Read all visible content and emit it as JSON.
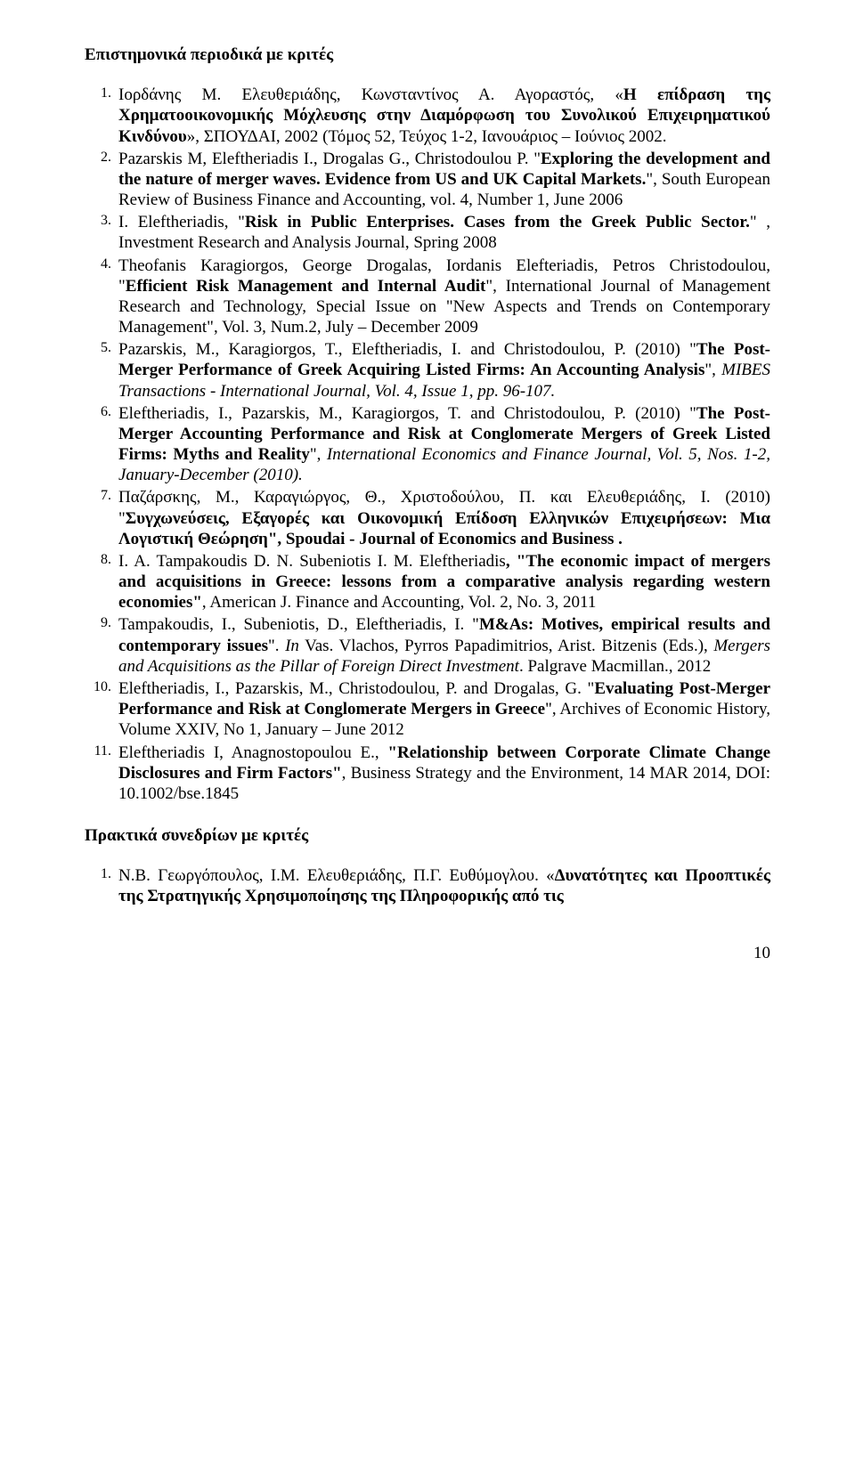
{
  "page_number": "10",
  "section1": {
    "title": "Επιστημονικά περιοδικά με κριτές",
    "items": [
      {
        "num": "1.",
        "plain1": "Ιορδάνης Μ. Ελευθεριάδης, Κωνσταντίνος Α. Αγοραστός, «",
        "bold1": "Η επίδραση της Χρηματοοικονομικής Μόχλευσης στην Διαμόρφωση του Συνολικού Επιχειρηματικού Κινδύνου",
        "plain2": "», ΣΠΟΥΔΑΙ, 2002 (Τόμος 52, Τεύχος 1-2, Ιανουάριος – Ιούνιος 2002."
      },
      {
        "num": "2.",
        "plain1": "Pazarskis M, Eleftheriadis I., Drogalas G., Christodoulou P. \"",
        "bold1": "Exploring the development and the nature of merger waves. Evidence from US and UK Capital Markets.",
        "plain2": "\", South European Review of Business Finance and Accounting, vol. 4, Number 1, June 2006"
      },
      {
        "num": "3.",
        "plain1": "I. Eleftheriadis, \"",
        "bold1": "Risk in Public Enterprises. Cases from the Greek Public Sector.",
        "plain2": "\" , Investment Research and Analysis Journal, Spring 2008"
      },
      {
        "num": "4.",
        "plain1": "Theofanis Karagiorgos, George Drogalas,  Iordanis Elefteriadis, Petros Christodoulou, \"",
        "bold1": "Efficient Risk Management and Internal Audit",
        "plain2": "\", International Journal of Management Research and Technology, Special Issue on \"New Aspects and Trends on Contemporary Management\", Vol. 3, Num.2, July – December 2009"
      },
      {
        "num": "5.",
        "plain1": "Pazarskis, M., Karagiorgos, T., Eleftheriadis, I. and Christodoulou, P. (2010) \"",
        "bold1": "The Post-Merger Performance of Greek Acquiring Listed Firms: An Accounting Analysis",
        "plain2": "\", ",
        "ital1": "MIBES Transactions - International Journal, Vol. 4, Issue 1, pp. 96-107."
      },
      {
        "num": "6.",
        "plain1": " Eleftheriadis, I., Pazarskis, M., Karagiorgos, T. and Christodoulou, P. (2010) \"",
        "bold1": "The Post-Merger Accounting Performance and Risk at Conglomerate Mergers of Greek Listed Firms: Myths and Reality",
        "plain2": "\", ",
        "ital1": "International Economics and Finance Journal, Vol. 5, Nos. 1-2, January-December (2010)."
      },
      {
        "num": "7.",
        "plain1": " Παζάρσκης, Μ., Καραγιώργος, Θ., Χριστοδούλου, Π. και Ελευθεριάδης, Ι. (2010) \"",
        "bold1": "Συγχωνεύσεις, Εξαγορές και Οικονομική Επίδοση Ελληνικών Επιχειρήσεων: Μια Λογιστική Θεώρηση\", Spoudai - Journal of Economics and Business .",
        "plain2": ""
      },
      {
        "num": "8.",
        "plain1": "I. A. Tampakoudis D. N. Subeniotis I. M. Eleftheriadis",
        "bold1": ", \"The economic impact of mergers and acquisitions in Greece: lessons from a comparative analysis regarding western economies\"",
        "plain2": ", American J. Finance and Accounting, Vol. 2, No. 3, 2011"
      },
      {
        "num": "9.",
        "plain1": " Tampakoudis, I., Subeniotis, D., Eleftheriadis, I. \"",
        "bold1": "M&As: Motives, empirical results and contemporary issues",
        "plain2": "\". ",
        "ital1": "In",
        "plain3": " Vas. Vlachos, Pyrros Papadimitrios, Arist. Bitzenis (Eds.), ",
        "ital2": "Mergers and Acquisitions as the Pillar of Foreign Direct Investment",
        "plain4": ". Palgrave Macmillan., 2012"
      },
      {
        "num": "10.",
        "plain1": "Eleftheriadis, I., Pazarskis, M., Christodoulou, P. and Drogalas, G. \"",
        "bold1": "Evaluating Post-Merger Performance and Risk at Conglomerate Mergers in Greece",
        "plain2": "\", Archives of Economic History, Volume XXIV, No 1, January – June 2012"
      },
      {
        "num": "11.",
        "plain1": "Eleftheriadis I, Anagnostopoulou E., ",
        "bold1": "\"Relationship between Corporate Climate Change Disclosures and Firm Factors\"",
        "plain2": ", Business Strategy and the Environment, 14 MAR 2014, DOI: 10.1002/bse.1845"
      }
    ]
  },
  "section2": {
    "title": "Πρακτικά συνεδρίων με κριτές",
    "items": [
      {
        "num": "1.",
        "plain1": "Ν.Β. Γεωργόπουλος, Ι.Μ. Ελευθεριάδης, Π.Γ. Ευθύμογλου. «",
        "bold1": "Δυνατότητες και Προοπτικές της Στρατηγικής Χρησιμοποίησης της Πληροφορικής από τις",
        "plain2": ""
      }
    ]
  }
}
